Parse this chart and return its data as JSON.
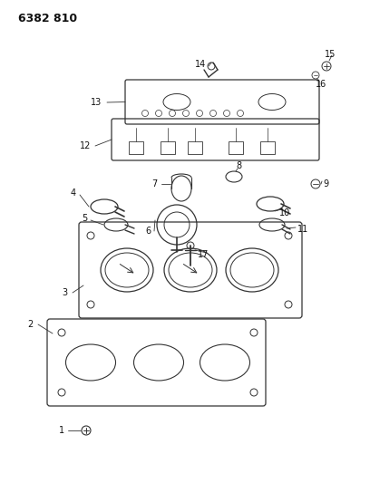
{
  "title": "6382 810",
  "bg_color": "#ffffff",
  "line_color": "#333333",
  "text_color": "#111111",
  "fig_width": 4.08,
  "fig_height": 5.33,
  "dpi": 100
}
